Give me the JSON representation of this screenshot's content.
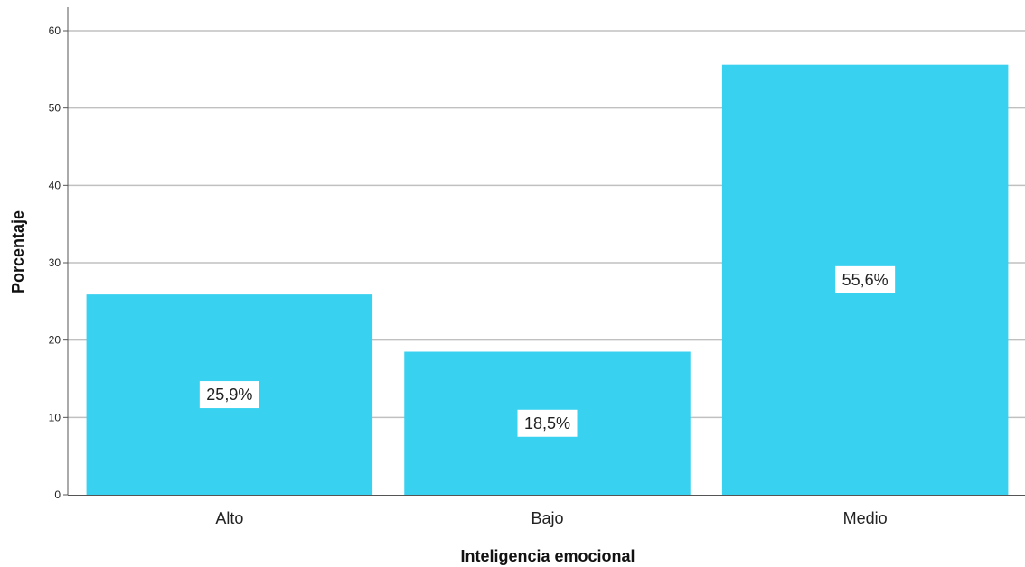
{
  "chart_data": {
    "type": "bar",
    "categories": [
      "Alto",
      "Bajo",
      "Medio"
    ],
    "values": [
      25.9,
      18.5,
      55.6
    ],
    "data_labels": [
      "25,9%",
      "18,5%",
      "55,6%"
    ],
    "xlabel": "Inteligencia emocional",
    "ylabel": "Porcentaje",
    "ylim": [
      0,
      60
    ],
    "yticks": [
      "0",
      "10",
      "20",
      "30",
      "40",
      "50",
      "60"
    ],
    "grid": true,
    "bar_color": "#38d1ef",
    "grid_color": "#c0c0c0"
  }
}
